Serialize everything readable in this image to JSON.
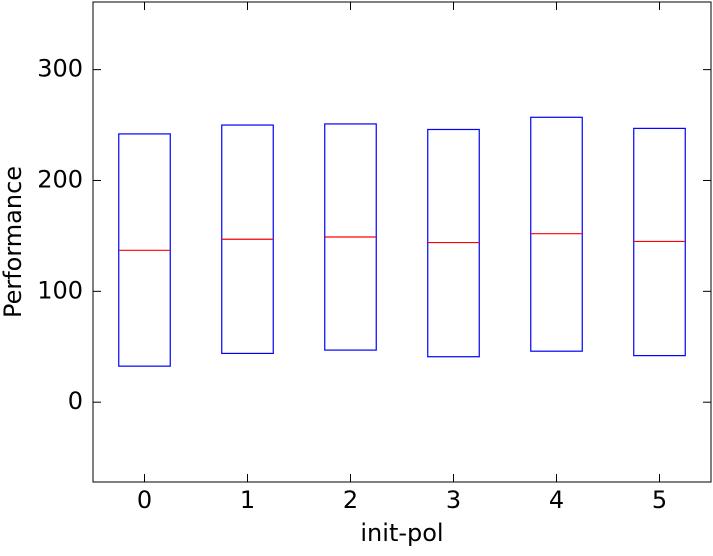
{
  "chart_data": {
    "type": "box",
    "xlabel": "init-pol",
    "ylabel": "Performance",
    "categories": [
      "0",
      "1",
      "2",
      "3",
      "4",
      "5"
    ],
    "q1": [
      32.5,
      44,
      47,
      41,
      46,
      42
    ],
    "median": [
      137,
      147,
      149,
      144,
      152,
      145
    ],
    "q3": [
      242,
      250,
      251,
      246,
      257,
      247
    ],
    "box_color": "#0000ff",
    "median_color": "#ff0000",
    "ylim": [
      -72,
      361
    ],
    "yticks": [
      0,
      100,
      200,
      300
    ]
  }
}
